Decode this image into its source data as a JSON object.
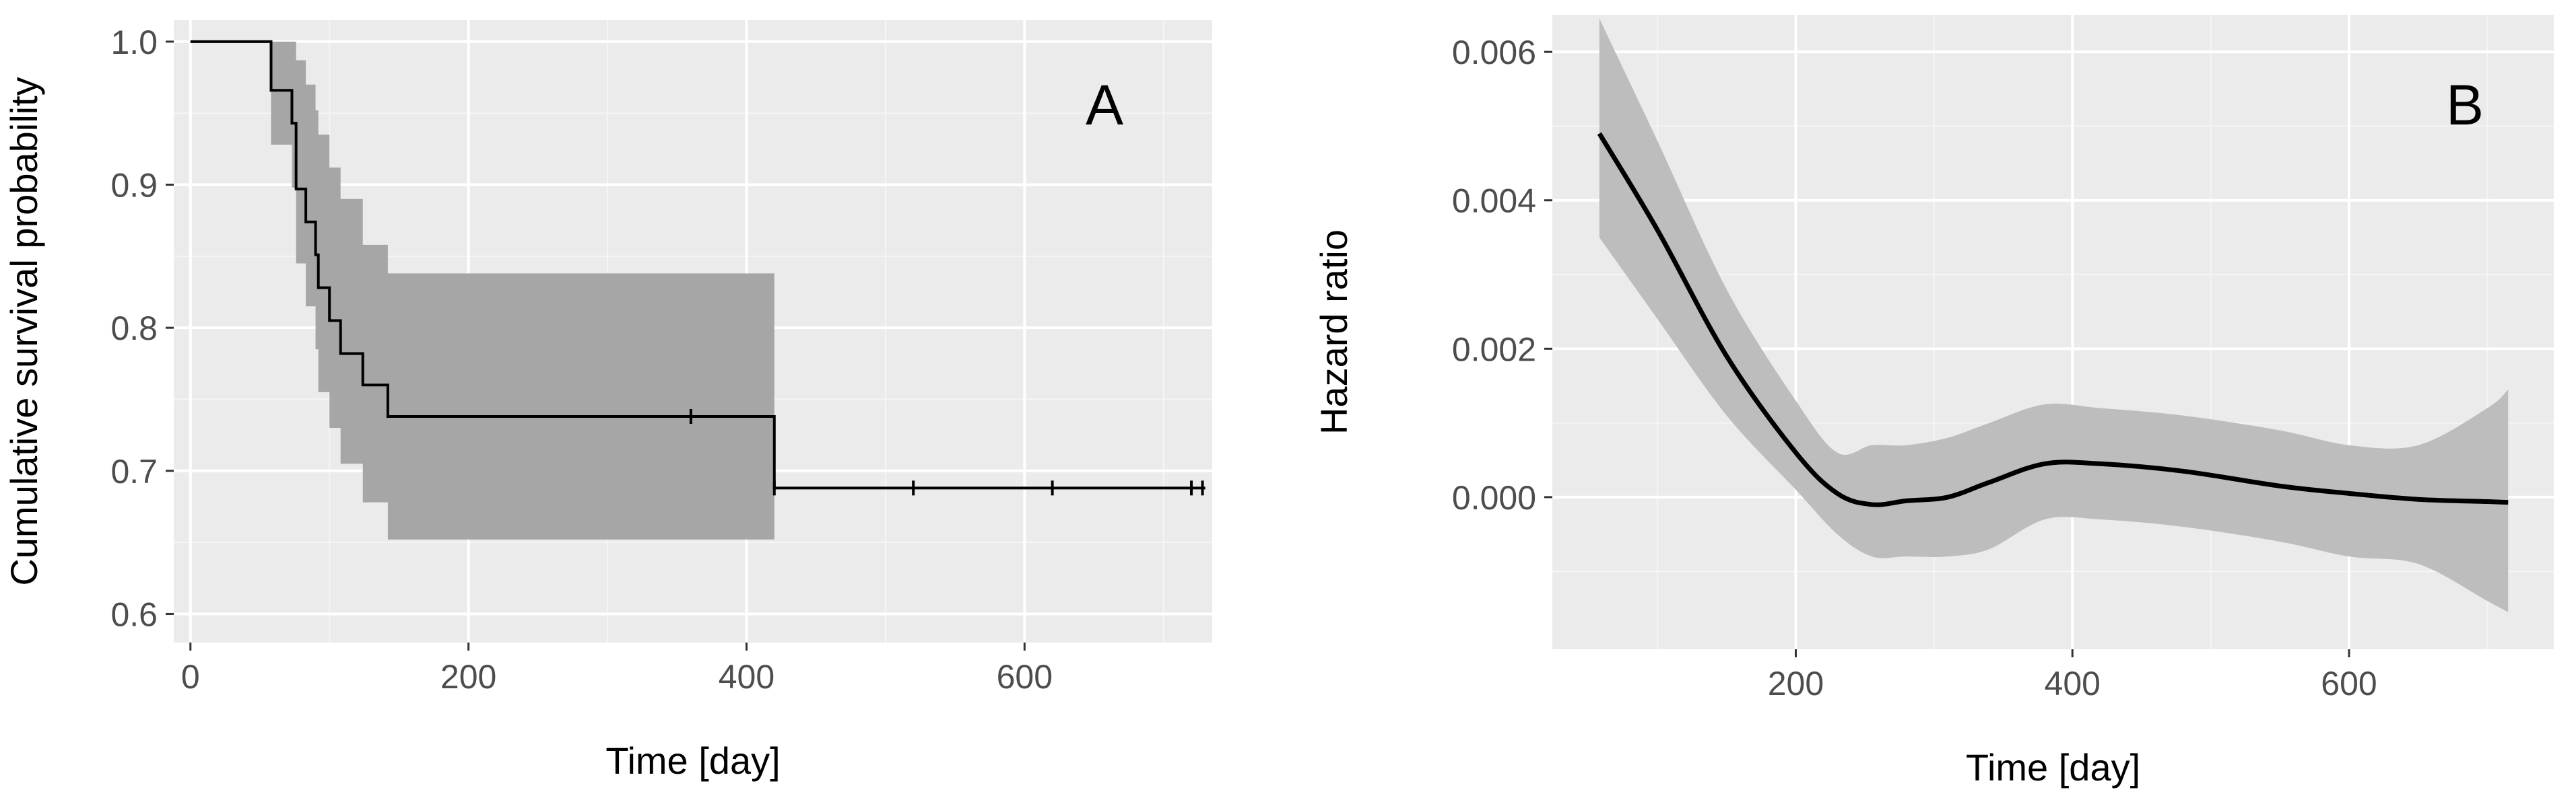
{
  "chart_data": [
    {
      "type": "line",
      "subtype": "kaplan-meier step with confidence band",
      "panel_label": "A",
      "xlabel": "Time [day]",
      "ylabel": "Cumulative survival probability",
      "xlim": [
        -12,
        735
      ],
      "ylim": [
        0.58,
        1.015
      ],
      "x_ticks": [
        0,
        200,
        400,
        600
      ],
      "x_tick_labels": [
        "0",
        "200",
        "400",
        "600"
      ],
      "y_ticks": [
        0.6,
        0.7,
        0.8,
        0.9,
        1.0
      ],
      "y_tick_labels": [
        "0.6",
        "0.7",
        "0.8",
        "0.9",
        "1.0"
      ],
      "grid": true,
      "colors": {
        "panel": "#ebebeb",
        "line": "#000000",
        "band": "#a6a6a6"
      },
      "series": [
        {
          "steps": [
            {
              "x": 0,
              "y": 1.0
            },
            {
              "x": 58,
              "y": 0.966
            },
            {
              "x": 73,
              "y": 0.943
            },
            {
              "x": 76,
              "y": 0.897
            },
            {
              "x": 83,
              "y": 0.874
            },
            {
              "x": 90,
              "y": 0.851
            },
            {
              "x": 92,
              "y": 0.828
            },
            {
              "x": 100,
              "y": 0.805
            },
            {
              "x": 108,
              "y": 0.782
            },
            {
              "x": 124,
              "y": 0.76
            },
            {
              "x": 142,
              "y": 0.738
            },
            {
              "x": 420,
              "y": 0.688
            },
            {
              "x": 730,
              "y": 0.688
            }
          ],
          "band": [
            {
              "x": 0,
              "lower": 1.0,
              "upper": 1.0
            },
            {
              "x": 58,
              "lower": 0.928,
              "upper": 1.0
            },
            {
              "x": 73,
              "lower": 0.898,
              "upper": 1.0
            },
            {
              "x": 76,
              "lower": 0.845,
              "upper": 0.987
            },
            {
              "x": 83,
              "lower": 0.815,
              "upper": 0.97
            },
            {
              "x": 90,
              "lower": 0.785,
              "upper": 0.952
            },
            {
              "x": 92,
              "lower": 0.755,
              "upper": 0.935
            },
            {
              "x": 100,
              "lower": 0.73,
              "upper": 0.912
            },
            {
              "x": 108,
              "lower": 0.705,
              "upper": 0.89
            },
            {
              "x": 124,
              "lower": 0.678,
              "upper": 0.858
            },
            {
              "x": 142,
              "lower": 0.652,
              "upper": 0.838
            },
            {
              "x": 420,
              "lower": 0.652,
              "upper": 0.838
            }
          ],
          "censored": [
            {
              "x": 360,
              "y": 0.738
            },
            {
              "x": 420,
              "y": 0.688
            },
            {
              "x": 520,
              "y": 0.688
            },
            {
              "x": 620,
              "y": 0.688
            },
            {
              "x": 720,
              "y": 0.688
            },
            {
              "x": 728,
              "y": 0.688
            }
          ]
        }
      ]
    },
    {
      "type": "line",
      "subtype": "smoothed curve with confidence band",
      "panel_label": "B",
      "xlabel": "Time [day]",
      "ylabel": "Hazard ratio",
      "xlim": [
        24,
        748
      ],
      "ylim": [
        -0.00205,
        0.0065
      ],
      "x_ticks": [
        200,
        400,
        600
      ],
      "x_tick_labels": [
        "200",
        "400",
        "600"
      ],
      "y_ticks": [
        0.0,
        0.002,
        0.004,
        0.006
      ],
      "y_tick_labels": [
        "0.000",
        "0.002",
        "0.004",
        "0.006"
      ],
      "grid": true,
      "colors": {
        "panel": "#ebebeb",
        "line": "#000000",
        "band": "#bdbdbd"
      },
      "series": [
        {
          "points": [
            {
              "x": 58,
              "y": 0.0049,
              "lower": 0.0035,
              "upper": 0.00645
            },
            {
              "x": 100,
              "y": 0.0036,
              "lower": 0.0024,
              "upper": 0.0048
            },
            {
              "x": 150,
              "y": 0.0019,
              "lower": 0.0011,
              "upper": 0.0028
            },
            {
              "x": 200,
              "y": 0.0006,
              "lower": 0.0001,
              "upper": 0.0013
            },
            {
              "x": 230,
              "y": 5e-05,
              "lower": -0.0005,
              "upper": 0.0006
            },
            {
              "x": 255,
              "y": -0.0001,
              "lower": -0.0008,
              "upper": 0.0007
            },
            {
              "x": 280,
              "y": -5e-05,
              "lower": -0.0008,
              "upper": 0.0007
            },
            {
              "x": 310,
              "y": 0.0,
              "lower": -0.0008,
              "upper": 0.0008
            },
            {
              "x": 340,
              "y": 0.0002,
              "lower": -0.0007,
              "upper": 0.001
            },
            {
              "x": 380,
              "y": 0.00045,
              "lower": -0.0003,
              "upper": 0.00125
            },
            {
              "x": 420,
              "y": 0.00045,
              "lower": -0.0003,
              "upper": 0.0012
            },
            {
              "x": 480,
              "y": 0.00035,
              "lower": -0.0004,
              "upper": 0.0011
            },
            {
              "x": 550,
              "y": 0.00015,
              "lower": -0.0006,
              "upper": 0.0009
            },
            {
              "x": 600,
              "y": 5e-05,
              "lower": -0.0008,
              "upper": 0.0007
            },
            {
              "x": 650,
              "y": -3e-05,
              "lower": -0.0009,
              "upper": 0.0007
            },
            {
              "x": 700,
              "y": -6e-05,
              "lower": -0.0014,
              "upper": 0.0012
            },
            {
              "x": 715,
              "y": -7e-05,
              "lower": -0.00155,
              "upper": 0.00145
            }
          ]
        }
      ]
    }
  ]
}
